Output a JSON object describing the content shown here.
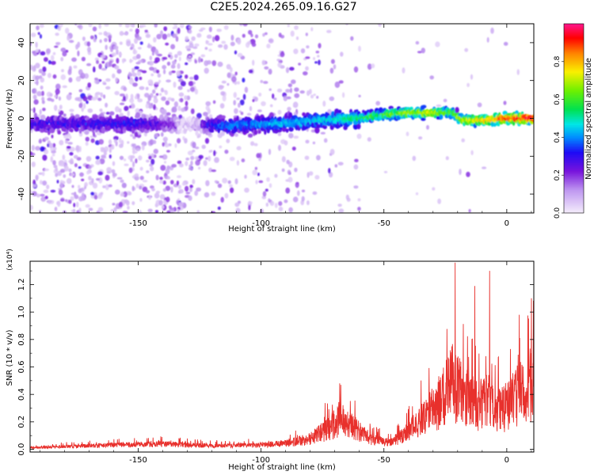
{
  "title": "C2E5.2024.265.09.16.G27",
  "chart_data": [
    {
      "type": "heatmap",
      "xlabel": "Height of straight line (km)",
      "ylabel": "Frequency (Hz)",
      "xlim": [
        -194,
        11
      ],
      "ylim": [
        -50,
        50
      ],
      "xticks": [
        -150,
        -100,
        -50,
        0
      ],
      "yticks": [
        -40,
        -20,
        0,
        20,
        40
      ],
      "colorbar": {
        "label": "Normalized spectral amplitude",
        "range": [
          0,
          1
        ],
        "ticks": [
          "0.0",
          "0.2",
          "0.4",
          "0.6",
          "0.8"
        ]
      },
      "ridge": [
        {
          "x": -190,
          "freq": -3,
          "amp": 0.28
        },
        {
          "x": -170,
          "freq": -3,
          "amp": 0.3
        },
        {
          "x": -150,
          "freq": -3,
          "amp": 0.3
        },
        {
          "x": -130,
          "freq": -3,
          "amp": 0.15
        },
        {
          "x": -115,
          "freq": -4,
          "amp": 0.38
        },
        {
          "x": -95,
          "freq": -3,
          "amp": 0.42
        },
        {
          "x": -75,
          "freq": -1,
          "amp": 0.45
        },
        {
          "x": -60,
          "freq": 0,
          "amp": 0.55
        },
        {
          "x": -50,
          "freq": 2,
          "amp": 0.62
        },
        {
          "x": -40,
          "freq": 3,
          "amp": 0.68
        },
        {
          "x": -30,
          "freq": 3,
          "amp": 0.72
        },
        {
          "x": -22,
          "freq": 3,
          "amp": 0.6
        },
        {
          "x": -18,
          "freq": -1,
          "amp": 0.72
        },
        {
          "x": -8,
          "freq": -1,
          "amp": 0.78
        },
        {
          "x": 0,
          "freq": 0,
          "amp": 0.92
        },
        {
          "x": 10,
          "freq": 0,
          "amp": 0.95
        }
      ]
    },
    {
      "type": "line",
      "xlabel": "Height of straight line (km)",
      "ylabel": "SNR (10 * v/v)",
      "yexponent": "(x10⁴)",
      "xlim": [
        -194,
        11
      ],
      "ylim": [
        -0.02,
        1.37
      ],
      "xticks": [
        -150,
        -100,
        -50,
        0
      ],
      "yticks": [
        "0.0",
        "0.2",
        "0.4",
        "0.6",
        "0.8",
        "1.0",
        "1.2"
      ],
      "color": "#e8302c",
      "envelope": [
        {
          "x": -194,
          "y": 0.02
        },
        {
          "x": -160,
          "y": 0.05
        },
        {
          "x": -140,
          "y": 0.06
        },
        {
          "x": -120,
          "y": 0.04
        },
        {
          "x": -100,
          "y": 0.05
        },
        {
          "x": -90,
          "y": 0.07
        },
        {
          "x": -80,
          "y": 0.12
        },
        {
          "x": -72,
          "y": 0.25
        },
        {
          "x": -68,
          "y": 0.36
        },
        {
          "x": -63,
          "y": 0.27
        },
        {
          "x": -55,
          "y": 0.11
        },
        {
          "x": -48,
          "y": 0.08
        },
        {
          "x": -42,
          "y": 0.16
        },
        {
          "x": -35,
          "y": 0.32
        },
        {
          "x": -28,
          "y": 0.52
        },
        {
          "x": -22,
          "y": 0.78
        },
        {
          "x": -18,
          "y": 0.62
        },
        {
          "x": -12,
          "y": 0.5
        },
        {
          "x": -8,
          "y": 0.56
        },
        {
          "x": -3,
          "y": 0.44
        },
        {
          "x": 3,
          "y": 0.58
        },
        {
          "x": 8,
          "y": 0.7
        },
        {
          "x": 11,
          "y": 0.8
        }
      ],
      "peaks": [
        {
          "x": -68,
          "y": 0.48
        },
        {
          "x": -21,
          "y": 1.36
        },
        {
          "x": -13,
          "y": 1.19
        },
        {
          "x": -7,
          "y": 1.3
        },
        {
          "x": 10,
          "y": 1.1
        }
      ]
    }
  ]
}
